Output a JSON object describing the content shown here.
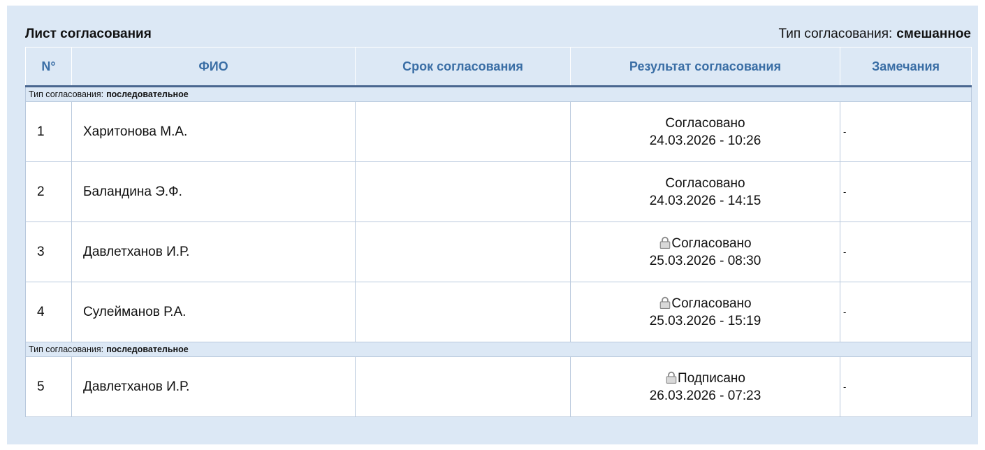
{
  "header": {
    "title": "Лист согласования",
    "type_label": "Тип согласования:",
    "type_value": "смешанное"
  },
  "table": {
    "columns": [
      "N°",
      "ФИО",
      "Срок согласования",
      "Результат согласования",
      "Замечания"
    ],
    "groups": [
      {
        "label": "Тип согласования:",
        "value": "последовательное",
        "rows": [
          {
            "number": 1,
            "name": "Харитонова М.А.",
            "status": "Согласовано",
            "date": "24.03.2026 - 10:26",
            "remarks": "-"
          },
          {
            "number": 2,
            "name": "Баландина Э.Ф.",
            "status": "Согласовано",
            "date": "24.03.2026 - 14:15",
            "remarks": "-"
          },
          {
            "number": 3,
            "name": "Давлетханов И.Р.",
            "status": "Согласовано",
            "date": "25.03.2026 - 08:30",
            "remarks": "-"
          },
          {
            "number": 4,
            "name": "Сулейманов Р.А.",
            "status": "Согласовано",
            "date": "25.03.2026 - 15:19",
            "remarks": "-"
          }
        ]
      },
      {
        "label": "Тип согласования:",
        "value": "последовательное",
        "rows": [
          {
            "number": 5,
            "name": "Давлетханов И.Р.",
            "status": "Подписано",
            "date": "26.03.2026 - 07:23",
            "remarks": "-"
          }
        ]
      }
    ]
  }
}
